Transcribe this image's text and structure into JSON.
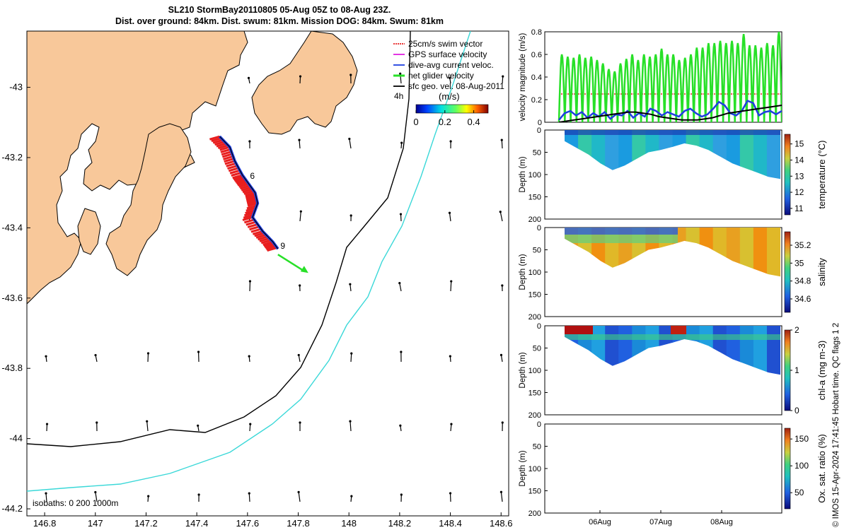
{
  "title": {
    "line1": "SL210 StormBay20110805 05-Aug 05Z to 08-Aug 23Z.",
    "line2": "Dist. over ground: 84km. Dist. swum: 81km. Mission DOG: 84km. Swum: 81km"
  },
  "colors": {
    "land": "#f8c89a",
    "swim_vector": "#e81e1e",
    "gps_velocity": "#e020e0",
    "dive_avg": "#1f3fe0",
    "net_glider": "#28e028",
    "sfc_geo": "#000000",
    "isobath_0": "#000000",
    "isobath_200": "#000000",
    "isobath_1000": "#3ad8d8"
  },
  "chart_data": [
    {
      "id": "map",
      "type": "scatter",
      "title": "glider track and surface velocity field",
      "x_ticks": [
        "146.8",
        "147",
        "147.2",
        "147.4",
        "147.6",
        "147.8",
        "148",
        "148.2",
        "148.4",
        "148.6"
      ],
      "y_ticks": [
        "-43",
        "-43.2",
        "-43.4",
        "-43.6",
        "-43.8",
        "-44",
        "-44.2"
      ],
      "xlim": [
        146.73,
        148.63
      ],
      "ylim": [
        -44.22,
        -42.84
      ],
      "legend": [
        {
          "label": "25cm/s swim vector",
          "color": "#e81e1e"
        },
        {
          "label": "GPS surface velocity",
          "color": "#e020e0"
        },
        {
          "label": "dive-avg current veloc.",
          "color": "#1f3fe0"
        },
        {
          "label": "net glider velocity",
          "color": "#28e028"
        },
        {
          "label": "sfc geo. vel. 08-Aug-2011",
          "color": "#000000"
        }
      ],
      "vector_scale_label": "4h",
      "colorbar": {
        "label": "(m/s)",
        "ticks": [
          "0",
          "0.2",
          "0.4"
        ],
        "range": [
          0,
          0.5
        ]
      },
      "track": {
        "lon": [
          147.49,
          147.53,
          147.55,
          147.58,
          147.6,
          147.63,
          147.64,
          147.62,
          147.66,
          147.7,
          147.72
        ],
        "lat": [
          -43.14,
          -43.17,
          -43.21,
          -43.25,
          -43.27,
          -43.3,
          -43.33,
          -43.37,
          -43.41,
          -43.44,
          -43.46
        ]
      },
      "track_labels": [
        {
          "text": "6",
          "lon": 147.61,
          "lat": -43.26
        },
        {
          "text": "9",
          "lon": 147.73,
          "lat": -43.46
        }
      ],
      "isobaths_label": "isobaths: 0   200  1000m"
    },
    {
      "id": "velocity",
      "type": "line",
      "ylabel": "velocity magnitude (m/s)",
      "ylim": [
        0,
        0.8
      ],
      "y_ticks": [
        "0",
        "0.2",
        "0.4",
        "0.6",
        "0.8"
      ],
      "reference_line": 0.25,
      "series": [
        {
          "name": "net glider velocity",
          "color": "#28e028",
          "peaks": [
            0.6,
            0.58,
            0.57,
            0.6,
            0.57,
            0.58,
            0.55,
            0.52,
            0.47,
            0.45,
            0.52,
            0.56,
            0.6,
            0.55,
            0.6,
            0.58,
            0.6,
            0.65,
            0.6,
            0.6,
            0.55,
            0.57,
            0.6,
            0.66,
            0.66,
            0.7,
            0.7,
            0.72,
            0.7,
            0.72,
            0.7,
            0.78,
            0.68,
            0.68,
            0.66,
            0.7,
            0.68,
            0.8
          ]
        },
        {
          "name": "dive-avg current veloc.",
          "color": "#1f3fe0",
          "values": [
            0.02,
            0.08,
            0.1,
            0.06,
            0.09,
            0.04,
            0.08,
            0.05,
            0.09,
            0.03,
            0.07,
            0.06,
            0.1,
            0.04,
            0.08,
            0.05,
            0.12,
            0.1,
            0.06,
            0.09,
            0.07,
            0.05,
            0.1,
            0.12,
            0.08,
            0.05,
            0.07,
            0.12,
            0.18,
            0.15,
            0.08,
            0.06,
            0.1,
            0.19,
            0.17,
            0.06,
            0.09,
            0.1,
            0.07,
            0.1
          ]
        },
        {
          "name": "sfc geo. vel.",
          "color": "#000000",
          "values": [
            0.0,
            0.01,
            0.02,
            0.03,
            0.04,
            0.05,
            0.06,
            0.07,
            0.08,
            0.09,
            0.09,
            0.08,
            0.07,
            0.05,
            0.04,
            0.03,
            0.02,
            0.02,
            0.02,
            0.03,
            0.04,
            0.06,
            0.08,
            0.09,
            0.1,
            0.11,
            0.12,
            0.13,
            0.14,
            0.15
          ]
        }
      ]
    },
    {
      "id": "temperature",
      "type": "heatmap",
      "ylabel": "Depth (m)",
      "ylim": [
        0,
        200
      ],
      "y_ticks": [
        "0",
        "50",
        "100",
        "150",
        "200"
      ],
      "colorbar": {
        "label": "temperature (°C)",
        "ticks": [
          "11",
          "12",
          "13",
          "14",
          "15"
        ],
        "range": [
          10.6,
          15.6
        ]
      },
      "surface_value": 13.2,
      "bottom_value": 13.0
    },
    {
      "id": "salinity",
      "type": "heatmap",
      "ylabel": "Depth (m)",
      "ylim": [
        0,
        200
      ],
      "y_ticks": [
        "0",
        "50",
        "100",
        "150",
        "200"
      ],
      "colorbar": {
        "label": "salinity",
        "ticks": [
          "34.6",
          "34.8",
          "35",
          "35.2"
        ],
        "range": [
          34.45,
          35.35
        ]
      }
    },
    {
      "id": "chla",
      "type": "heatmap",
      "ylabel": "Depth (m)",
      "ylim": [
        0,
        200
      ],
      "y_ticks": [
        "0",
        "50",
        "100",
        "150",
        "200"
      ],
      "colorbar": {
        "label": "chl-a (mg m-3)",
        "ticks": [
          "0",
          "1",
          "2"
        ],
        "range": [
          0,
          2
        ]
      }
    },
    {
      "id": "oxygen",
      "type": "heatmap",
      "ylabel": "Depth (m)",
      "ylim": [
        0,
        200
      ],
      "y_ticks": [
        "0",
        "50",
        "100",
        "150",
        "200"
      ],
      "colorbar": {
        "label": "Ox. sat. ratio (%)",
        "ticks": [
          "50",
          "100",
          "150"
        ],
        "range": [
          20,
          170
        ]
      },
      "x_ticks": [
        "06Aug",
        "07Aug",
        "08Aug"
      ]
    }
  ],
  "footer": {
    "credit": "© IMOS 15-Apr-2024 17:41:45 Hobart time. QC flags 1  2"
  }
}
